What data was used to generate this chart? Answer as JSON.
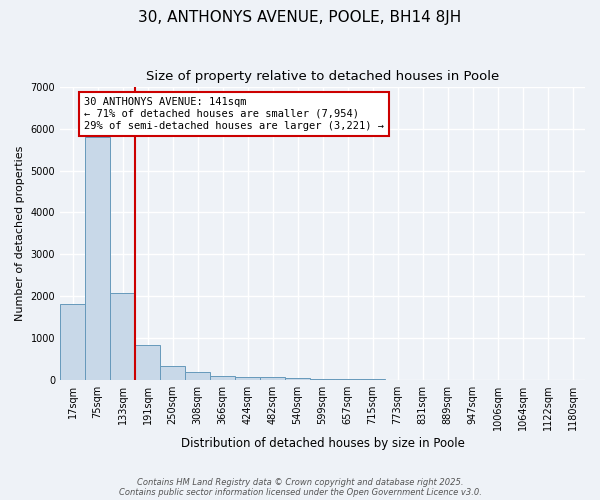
{
  "title1": "30, ANTHONYS AVENUE, POOLE, BH14 8JH",
  "title2": "Size of property relative to detached houses in Poole",
  "xlabel": "Distribution of detached houses by size in Poole",
  "ylabel": "Number of detached properties",
  "tick_labels": [
    "17sqm",
    "75sqm",
    "133sqm",
    "191sqm",
    "250sqm",
    "308sqm",
    "366sqm",
    "424sqm",
    "482sqm",
    "540sqm",
    "599sqm",
    "657sqm",
    "715sqm",
    "773sqm",
    "831sqm",
    "889sqm",
    "947sqm",
    "1006sqm",
    "1064sqm",
    "1122sqm",
    "1180sqm"
  ],
  "values": [
    1800,
    5800,
    2080,
    820,
    330,
    190,
    100,
    70,
    55,
    30,
    15,
    10,
    5,
    0,
    0,
    0,
    0,
    0,
    0,
    0,
    0
  ],
  "bar_color": "#c8d8e8",
  "bar_edge_color": "#6699bb",
  "red_line_x": 2.5,
  "annotation_title": "30 ANTHONYS AVENUE: 141sqm",
  "annotation_line1": "← 71% of detached houses are smaller (7,954)",
  "annotation_line2": "29% of semi-detached houses are larger (3,221) →",
  "annotation_box_facecolor": "#ffffff",
  "annotation_box_edgecolor": "#cc0000",
  "footer1": "Contains HM Land Registry data © Crown copyright and database right 2025.",
  "footer2": "Contains public sector information licensed under the Open Government Licence v3.0.",
  "background_color": "#eef2f7",
  "ylim": [
    0,
    7000
  ],
  "grid_color": "#ffffff",
  "title_fontsize": 11,
  "subtitle_fontsize": 9.5
}
